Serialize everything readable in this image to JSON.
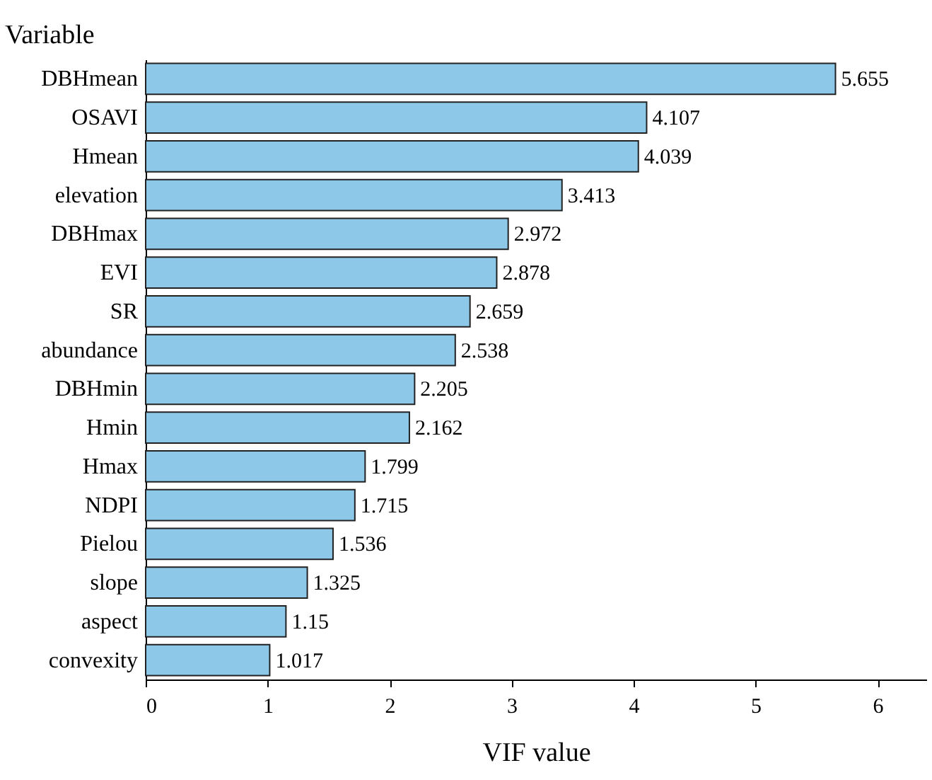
{
  "chart_data": {
    "type": "bar",
    "orientation": "horizontal",
    "xlabel": "VIF value",
    "ylabel": "Variable",
    "categories": [
      "DBHmean",
      "OSAVI",
      "Hmean",
      "elevation",
      "DBHmax",
      "EVI",
      "SR",
      "abundance",
      "DBHmin",
      "Hmin",
      "Hmax",
      "NDPI",
      "Pielou",
      "slope",
      "aspect",
      "convexity"
    ],
    "values": [
      5.655,
      4.107,
      4.039,
      3.413,
      2.972,
      2.878,
      2.659,
      2.538,
      2.205,
      2.162,
      1.799,
      1.715,
      1.536,
      1.325,
      1.15,
      1.017
    ],
    "color": "#8ec8e8",
    "xlim": [
      0,
      6.4
    ],
    "xticks": [
      0,
      1,
      2,
      3,
      4,
      5,
      6
    ],
    "data_labels": true
  }
}
